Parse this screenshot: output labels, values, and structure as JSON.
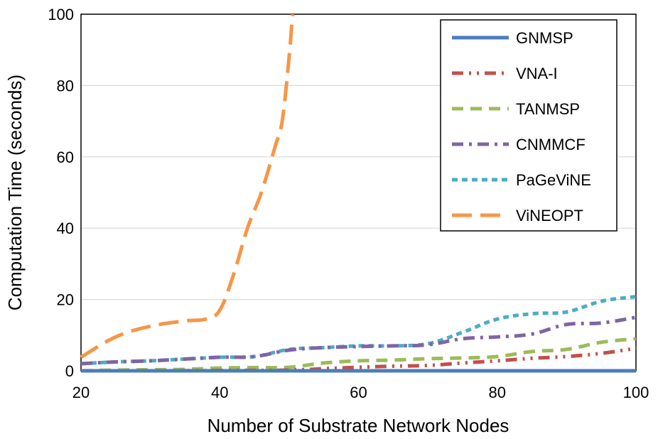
{
  "chart_data": {
    "type": "line",
    "title": "",
    "xlabel": "Number of Substrate Network Nodes",
    "ylabel": "Computation Time (seconds)",
    "xlim": [
      20,
      100
    ],
    "ylim": [
      0,
      100
    ],
    "xticks": [
      20,
      40,
      60,
      80,
      100
    ],
    "yticks": [
      0,
      20,
      40,
      60,
      80,
      100
    ],
    "grid": "horizontal",
    "legend_position": "top-right",
    "series": [
      {
        "name": "GNMSP",
        "color": "#4a7ebb",
        "dash": "solid",
        "x": [
          20,
          30,
          40,
          50,
          60,
          70,
          80,
          90,
          100
        ],
        "y": [
          0,
          0,
          0,
          0,
          0,
          0,
          0,
          0,
          0
        ]
      },
      {
        "name": "VNA-I",
        "color": "#c0504d",
        "dash": "dash-dot-dot",
        "x": [
          20,
          30,
          40,
          50,
          55,
          60,
          65,
          70,
          75,
          80,
          85,
          90,
          95,
          100
        ],
        "y": [
          0,
          0,
          0.1,
          0.2,
          0.6,
          1.0,
          1.3,
          1.5,
          2.2,
          2.8,
          3.5,
          4.0,
          4.9,
          6.3
        ]
      },
      {
        "name": "TANMSP",
        "color": "#9bbb59",
        "dash": "dash",
        "x": [
          20,
          25,
          30,
          35,
          40,
          45,
          50,
          55,
          60,
          65,
          70,
          75,
          80,
          85,
          90,
          95,
          100
        ],
        "y": [
          0,
          0.2,
          0.3,
          0.4,
          0.8,
          0.9,
          1.0,
          2.2,
          2.8,
          3.0,
          3.4,
          3.6,
          4.0,
          5.4,
          6.0,
          8.0,
          9.0
        ]
      },
      {
        "name": "CNMMCF",
        "color": "#8064a2",
        "dash": "dash-dot",
        "x": [
          20,
          25,
          30,
          35,
          40,
          45,
          50,
          55,
          60,
          65,
          70,
          75,
          80,
          85,
          90,
          95,
          100
        ],
        "y": [
          2.0,
          2.5,
          2.8,
          3.3,
          3.8,
          4.0,
          5.8,
          6.5,
          6.8,
          7.0,
          7.3,
          9.0,
          9.5,
          10.3,
          13.0,
          13.4,
          15.0
        ]
      },
      {
        "name": "PaGeViNE",
        "color": "#4bacc6",
        "dash": "short-dash",
        "x": [
          20,
          25,
          30,
          35,
          40,
          45,
          50,
          55,
          60,
          65,
          70,
          75,
          80,
          85,
          90,
          95,
          100
        ],
        "y": [
          2.0,
          2.5,
          2.8,
          3.3,
          3.8,
          4.0,
          6.0,
          6.5,
          7.0,
          7.0,
          7.6,
          10.8,
          14.5,
          16.0,
          16.5,
          19.5,
          20.8
        ]
      },
      {
        "name": "ViNEOPT",
        "color": "#f79646",
        "dash": "long-dash",
        "x": [
          20,
          25,
          30,
          35,
          38,
          40,
          42,
          44,
          46,
          48,
          49,
          50,
          50.5
        ],
        "y": [
          3.8,
          9.5,
          12.5,
          14.0,
          14.5,
          17.0,
          27.0,
          40.0,
          50.0,
          63.0,
          70.0,
          88.0,
          100
        ]
      }
    ]
  }
}
